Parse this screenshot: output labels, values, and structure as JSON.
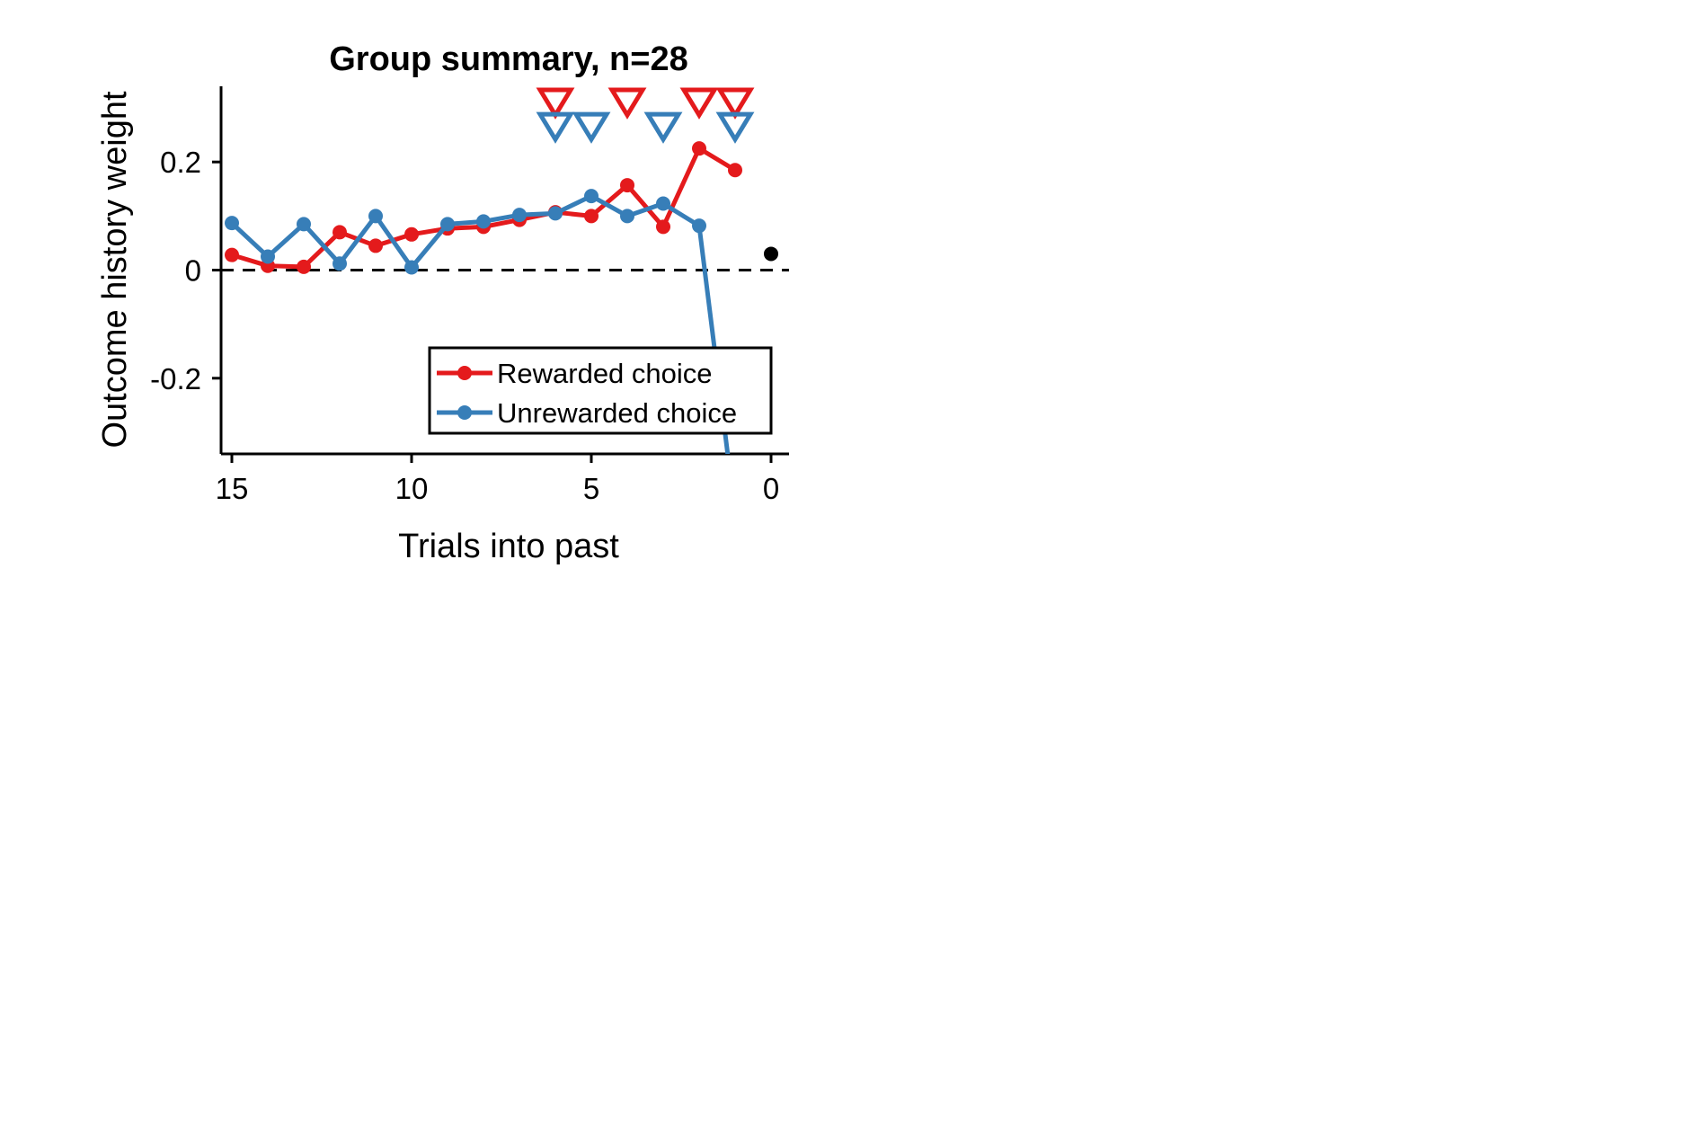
{
  "chart_data": {
    "type": "line",
    "title": "Group summary, n=28",
    "xlabel": "Trials into past",
    "ylabel": "Outcome history weight",
    "xlim": [
      15.3,
      -0.5
    ],
    "ylim": [
      -0.34,
      0.34
    ],
    "x_ticks": [
      15,
      10,
      5,
      0
    ],
    "y_ticks": [
      0.2,
      0,
      -0.2
    ],
    "x_tick_labels": [
      "15",
      "10",
      "5",
      "0"
    ],
    "y_tick_labels": [
      "0.2",
      "0",
      "-0.2"
    ],
    "grid": false,
    "legend_position": "bottom-right",
    "zero_reference_line": "dashed",
    "series": [
      {
        "name": "Rewarded choice",
        "color": "#e41a1c",
        "x": [
          15,
          14,
          13,
          12,
          11,
          10,
          9,
          8,
          7,
          6,
          5,
          4,
          3,
          2,
          1
        ],
        "values": [
          0.028,
          0.008,
          0.006,
          0.07,
          0.045,
          0.066,
          0.077,
          0.08,
          0.093,
          0.107,
          0.1,
          0.157,
          0.08,
          0.225,
          0.185
        ],
        "significance_markers_at": [
          6,
          4,
          2,
          1
        ]
      },
      {
        "name": "Unreward­ed choice",
        "color": "#377eb8",
        "x": [
          15,
          14,
          13,
          12,
          11,
          10,
          9,
          8,
          7,
          6,
          5,
          4,
          3,
          2,
          1
        ],
        "values": [
          0.087,
          0.025,
          0.085,
          0.012,
          0.1,
          0.005,
          0.085,
          0.09,
          0.102,
          0.105,
          0.137,
          0.1,
          0.123,
          0.082,
          -0.45
        ],
        "significance_markers_at": [
          6,
          5,
          3,
          1
        ]
      }
    ],
    "extra_points": [
      {
        "x": 0,
        "y": 0.03,
        "color": "#000000"
      }
    ]
  }
}
